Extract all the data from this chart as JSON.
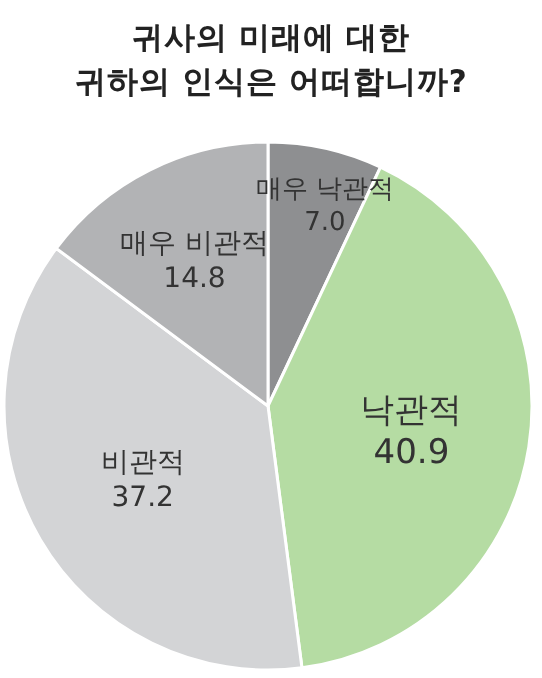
{
  "chart_data": {
    "type": "pie",
    "title": "귀사의 미래에 대한\n귀하의 인식은 어떠합니까?",
    "categories": [
      "매우 낙관적",
      "낙관적",
      "비관적",
      "매우 비관적"
    ],
    "values": [
      7.0,
      40.9,
      37.2,
      14.8
    ],
    "colors": [
      "#8e8f91",
      "#b5dca3",
      "#d3d4d6",
      "#b2b3b5"
    ],
    "value_labels": [
      "7.0",
      "40.9",
      "37.2",
      "14.8"
    ]
  }
}
